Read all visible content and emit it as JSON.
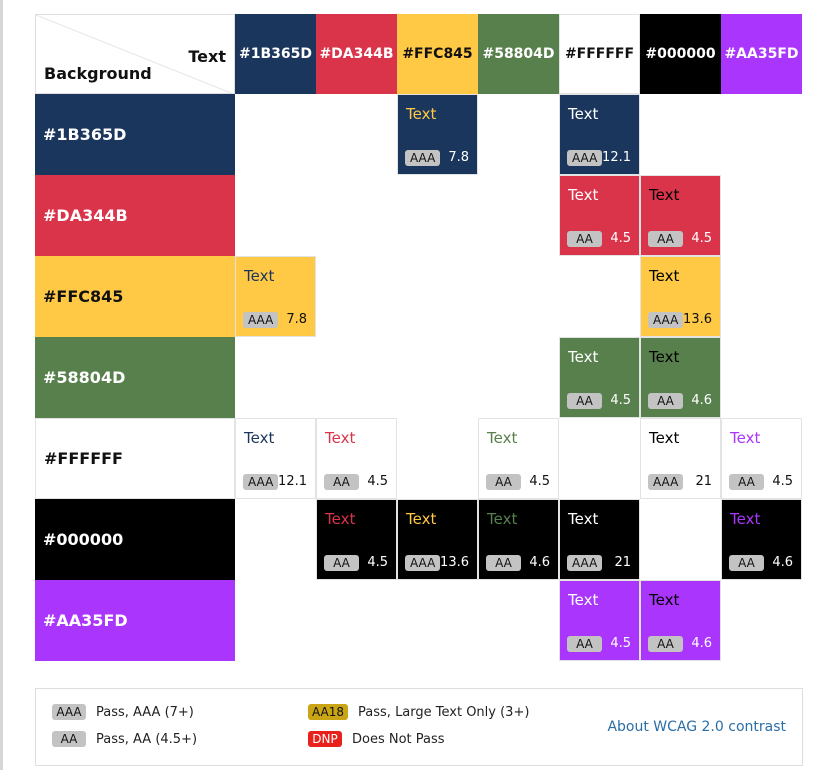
{
  "corner": {
    "text_label": "Text",
    "background_label": "Background"
  },
  "columns": [
    {
      "label": "#1B365D",
      "bg": "#1B365D",
      "fg": "#FFFFFF"
    },
    {
      "label": "#DA344B",
      "bg": "#DA344B",
      "fg": "#FFFFFF"
    },
    {
      "label": "#FFC845",
      "bg": "#FFC845",
      "fg": "#111111"
    },
    {
      "label": "#58804D",
      "bg": "#58804D",
      "fg": "#FFFFFF"
    },
    {
      "label": "#FFFFFF",
      "bg": "#FFFFFF",
      "fg": "#111111"
    },
    {
      "label": "#000000",
      "bg": "#000000",
      "fg": "#FFFFFF"
    },
    {
      "label": "#AA35FD",
      "bg": "#AA35FD",
      "fg": "#FFFFFF"
    }
  ],
  "rows": [
    {
      "label": "#1B365D",
      "bg": "#1B365D",
      "fg": "#FFFFFF"
    },
    {
      "label": "#DA344B",
      "bg": "#DA344B",
      "fg": "#FFFFFF"
    },
    {
      "label": "#FFC845",
      "bg": "#FFC845",
      "fg": "#111111"
    },
    {
      "label": "#58804D",
      "bg": "#58804D",
      "fg": "#FFFFFF"
    },
    {
      "label": "#FFFFFF",
      "bg": "#FFFFFF",
      "fg": "#111111"
    },
    {
      "label": "#000000",
      "bg": "#000000",
      "fg": "#FFFFFF"
    },
    {
      "label": "#AA35FD",
      "bg": "#AA35FD",
      "fg": "#FFFFFF"
    }
  ],
  "cells": [
    [
      null,
      null,
      {
        "text": "Text",
        "badge": "AAA",
        "ratio": "7.8"
      },
      null,
      {
        "text": "Text",
        "badge": "AAA",
        "ratio": "12.1"
      },
      null,
      null
    ],
    [
      null,
      null,
      null,
      null,
      {
        "text": "Text",
        "badge": "AA",
        "ratio": "4.5"
      },
      {
        "text": "Text",
        "badge": "AA",
        "ratio": "4.5"
      },
      null
    ],
    [
      {
        "text": "Text",
        "badge": "AAA",
        "ratio": "7.8"
      },
      null,
      null,
      null,
      null,
      {
        "text": "Text",
        "badge": "AAA",
        "ratio": "13.6"
      },
      null
    ],
    [
      null,
      null,
      null,
      null,
      {
        "text": "Text",
        "badge": "AA",
        "ratio": "4.5"
      },
      {
        "text": "Text",
        "badge": "AA",
        "ratio": "4.6"
      },
      null
    ],
    [
      {
        "text": "Text",
        "badge": "AAA",
        "ratio": "12.1"
      },
      {
        "text": "Text",
        "badge": "AA",
        "ratio": "4.5"
      },
      null,
      {
        "text": "Text",
        "badge": "AA",
        "ratio": "4.5"
      },
      null,
      {
        "text": "Text",
        "badge": "AAA",
        "ratio": "21"
      },
      {
        "text": "Text",
        "badge": "AA",
        "ratio": "4.5"
      }
    ],
    [
      null,
      {
        "text": "Text",
        "badge": "AA",
        "ratio": "4.5"
      },
      {
        "text": "Text",
        "badge": "AAA",
        "ratio": "13.6"
      },
      {
        "text": "Text",
        "badge": "AA",
        "ratio": "4.6"
      },
      {
        "text": "Text",
        "badge": "AAA",
        "ratio": "21"
      },
      null,
      {
        "text": "Text",
        "badge": "AA",
        "ratio": "4.6"
      }
    ],
    [
      null,
      null,
      null,
      null,
      {
        "text": "Text",
        "badge": "AA",
        "ratio": "4.5"
      },
      {
        "text": "Text",
        "badge": "AA",
        "ratio": "4.6"
      },
      null
    ]
  ],
  "legend": {
    "items": [
      {
        "badge": "AAA",
        "label": "Pass, AAA (7+)",
        "badge_bg": "#c3c3c3",
        "badge_fg": "#111111"
      },
      {
        "badge": "AA",
        "label": "Pass, AA (4.5+)",
        "badge_bg": "#c3c3c3",
        "badge_fg": "#111111"
      },
      {
        "badge": "AA18",
        "label": "Pass, Large Text Only (3+)",
        "badge_bg": "#c9a515",
        "badge_fg": "#111111"
      },
      {
        "badge": "DNP",
        "label": "Does Not Pass",
        "badge_bg": "#e8211c",
        "badge_fg": "#ffffff"
      }
    ],
    "link": "About WCAG 2.0 contrast"
  }
}
